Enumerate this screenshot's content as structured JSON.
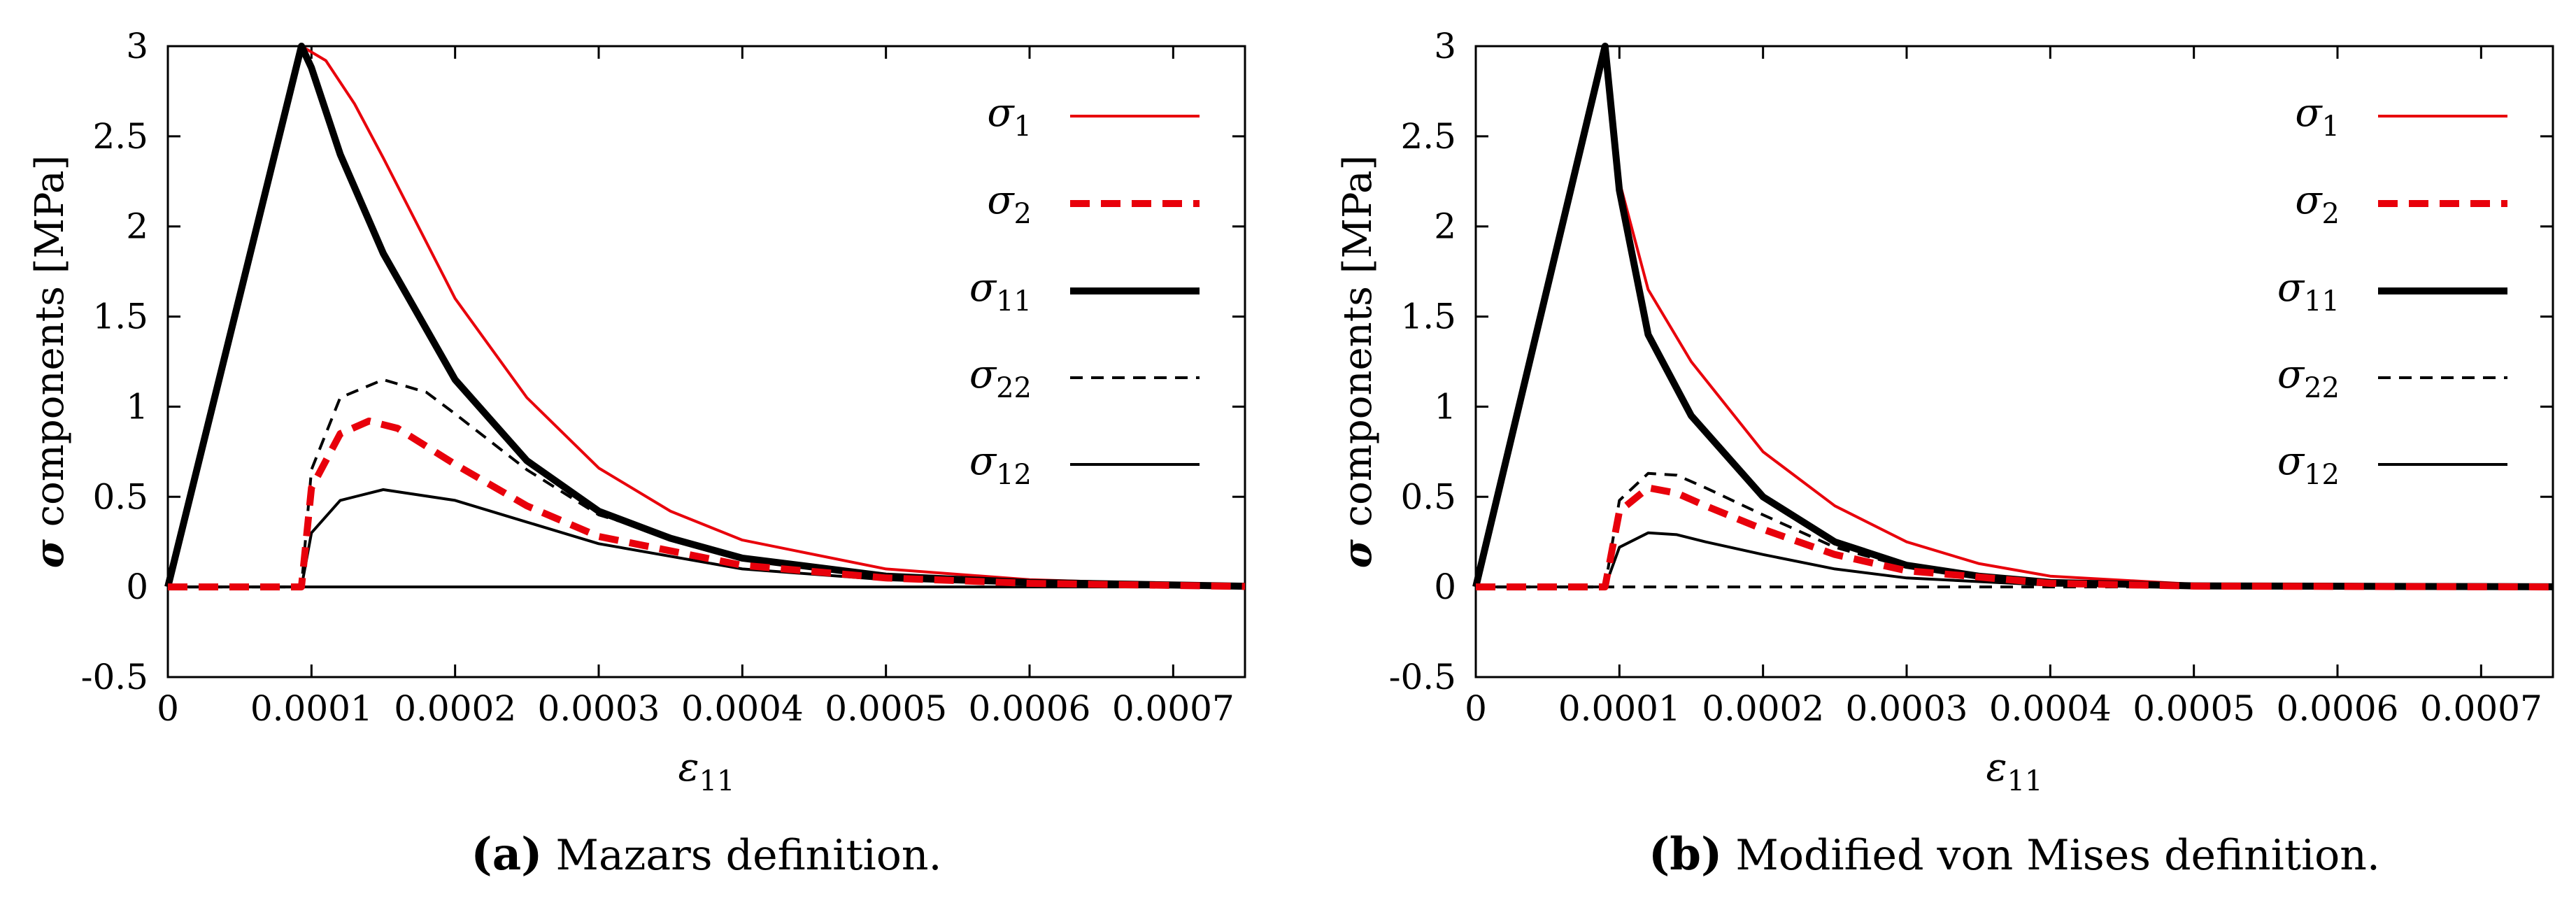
{
  "chart_data": [
    {
      "type": "line",
      "panel_label": "(a)",
      "caption": "Mazars definition.",
      "xlabel": "ε11",
      "ylabel": "σ components [MPa]",
      "xlim": [
        0,
        0.00075
      ],
      "ylim": [
        -0.5,
        3
      ],
      "x_ticks": [
        "0",
        "0.0001",
        "0.0002",
        "0.0003",
        "0.0004",
        "0.0005",
        "0.0006",
        "0.0007"
      ],
      "y_ticks": [
        "-0.5",
        "0",
        "0.5",
        "1",
        "1.5",
        "2",
        "2.5",
        "3"
      ],
      "legend_position": "top-right",
      "grid": false,
      "series": [
        {
          "name": "σ1",
          "color": "#e8000b",
          "style": "solid-thin",
          "x": [
            0,
            9.3e-05,
            0.00011,
            0.00013,
            0.00015,
            0.0002,
            0.00025,
            0.0003,
            0.00035,
            0.0004,
            0.0005,
            0.0006,
            0.00075
          ],
          "y": [
            0,
            3.0,
            2.92,
            2.68,
            2.38,
            1.6,
            1.05,
            0.66,
            0.42,
            0.26,
            0.1,
            0.04,
            0.005
          ]
        },
        {
          "name": "σ2",
          "color": "#e8000b",
          "style": "dashed-thick",
          "x": [
            0,
            9.3e-05,
            0.0001,
            0.00012,
            0.00014,
            0.00016,
            0.0002,
            0.00025,
            0.0003,
            0.0004,
            0.0005,
            0.0006,
            0.00075
          ],
          "y": [
            0,
            0,
            0.55,
            0.85,
            0.92,
            0.88,
            0.68,
            0.45,
            0.28,
            0.12,
            0.05,
            0.02,
            0.003
          ]
        },
        {
          "name": "σ11",
          "color": "#000000",
          "style": "solid-thick",
          "x": [
            0,
            9.3e-05,
            0.0001,
            0.00012,
            0.00015,
            0.0002,
            0.00025,
            0.0003,
            0.00035,
            0.0004,
            0.0005,
            0.0006,
            0.00075
          ],
          "y": [
            0,
            3.0,
            2.88,
            2.4,
            1.85,
            1.15,
            0.7,
            0.42,
            0.27,
            0.16,
            0.06,
            0.025,
            0.004
          ]
        },
        {
          "name": "σ22",
          "color": "#000000",
          "style": "dashed-thin",
          "x": [
            0,
            9.3e-05,
            0.0001,
            0.00012,
            0.00015,
            0.00018,
            0.0002,
            0.00025,
            0.0003,
            0.0004,
            0.0005,
            0.0006,
            0.00075
          ],
          "y": [
            0,
            0,
            0.65,
            1.05,
            1.15,
            1.08,
            0.96,
            0.65,
            0.4,
            0.16,
            0.06,
            0.025,
            0.004
          ]
        },
        {
          "name": "σ12",
          "color": "#000000",
          "style": "solid-thin",
          "x": [
            0,
            9.3e-05,
            0.0001,
            0.00012,
            0.00015,
            0.0002,
            0.00025,
            0.0003,
            0.0004,
            0.0005,
            0.0006,
            0.00075
          ],
          "y": [
            0,
            0,
            0.3,
            0.48,
            0.54,
            0.48,
            0.36,
            0.24,
            0.1,
            0.04,
            0.015,
            0.002
          ]
        }
      ],
      "reference_lines": [
        {
          "y": 0,
          "color": "#000000",
          "style": "solid-thin"
        }
      ]
    },
    {
      "type": "line",
      "panel_label": "(b)",
      "caption": "Modified von Mises definition.",
      "xlabel": "ε11",
      "ylabel": "σ components [MPa]",
      "xlim": [
        0,
        0.00075
      ],
      "ylim": [
        -0.5,
        3
      ],
      "x_ticks": [
        "0",
        "0.0001",
        "0.0002",
        "0.0003",
        "0.0004",
        "0.0005",
        "0.0006",
        "0.0007"
      ],
      "y_ticks": [
        "-0.5",
        "0",
        "0.5",
        "1",
        "1.5",
        "2",
        "2.5",
        "3"
      ],
      "legend_position": "top-right",
      "grid": false,
      "series": [
        {
          "name": "σ1",
          "color": "#e8000b",
          "style": "solid-thin",
          "x": [
            0,
            9e-05,
            0.0001,
            0.00012,
            0.00015,
            0.0002,
            0.00025,
            0.0003,
            0.00035,
            0.0004,
            0.0005,
            0.0006,
            0.00075
          ],
          "y": [
            0,
            3.0,
            2.25,
            1.65,
            1.25,
            0.75,
            0.45,
            0.25,
            0.13,
            0.06,
            0.015,
            0.004,
            0.001
          ]
        },
        {
          "name": "σ2",
          "color": "#e8000b",
          "style": "dashed-thick",
          "x": [
            0,
            9e-05,
            0.0001,
            0.00012,
            0.00014,
            0.00016,
            0.0002,
            0.00025,
            0.0003,
            0.0004,
            0.0005,
            0.00075
          ],
          "y": [
            0,
            0,
            0.42,
            0.55,
            0.52,
            0.45,
            0.32,
            0.18,
            0.09,
            0.02,
            0.005,
            0
          ]
        },
        {
          "name": "σ11",
          "color": "#000000",
          "style": "solid-thick",
          "x": [
            0,
            9e-05,
            0.0001,
            0.00012,
            0.00015,
            0.0002,
            0.00025,
            0.0003,
            0.00035,
            0.0004,
            0.0005,
            0.00075
          ],
          "y": [
            0,
            3.0,
            2.2,
            1.4,
            0.95,
            0.5,
            0.25,
            0.12,
            0.06,
            0.025,
            0.006,
            0.001
          ]
        },
        {
          "name": "σ22",
          "color": "#000000",
          "style": "dashed-thin",
          "x": [
            0,
            9e-05,
            0.0001,
            0.00012,
            0.00014,
            0.00016,
            0.0002,
            0.00025,
            0.0003,
            0.0004,
            0.0005,
            0.00075
          ],
          "y": [
            0,
            0,
            0.48,
            0.63,
            0.62,
            0.55,
            0.4,
            0.22,
            0.11,
            0.025,
            0.005,
            0
          ]
        },
        {
          "name": "σ12",
          "color": "#000000",
          "style": "solid-thin",
          "x": [
            0,
            9e-05,
            0.0001,
            0.00012,
            0.00014,
            0.00016,
            0.0002,
            0.00025,
            0.0003,
            0.0004,
            0.0005,
            0.00075
          ],
          "y": [
            0,
            0,
            0.22,
            0.3,
            0.29,
            0.25,
            0.18,
            0.1,
            0.05,
            0.01,
            0.002,
            0
          ]
        }
      ],
      "reference_lines": [
        {
          "y": 0,
          "color": "#000000",
          "style": "dashed-thin"
        }
      ]
    }
  ]
}
